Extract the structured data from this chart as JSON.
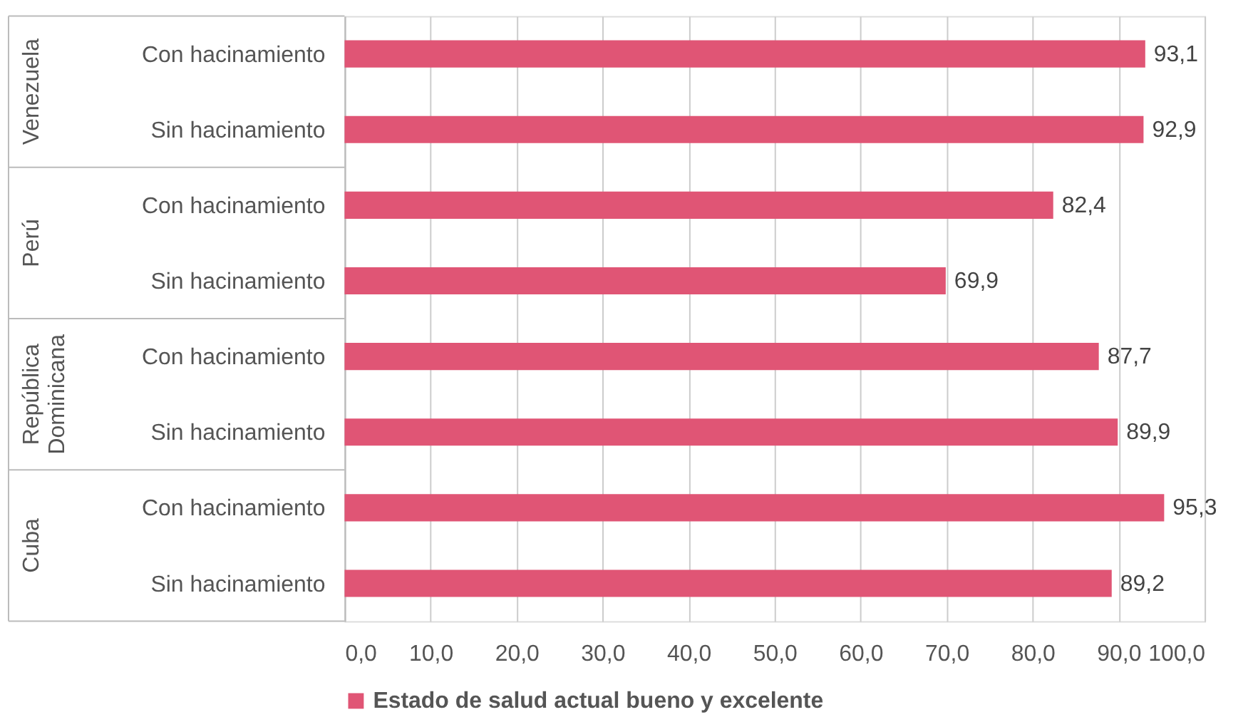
{
  "chart_data": {
    "type": "bar",
    "orientation": "horizontal",
    "categories": [
      "Con hacinamiento",
      "Sin hacinamiento",
      "Con hacinamiento",
      "Sin hacinamiento",
      "Con hacinamiento",
      "Sin hacinamiento",
      "Con hacinamiento",
      "Sin hacinamiento"
    ],
    "annotations": [
      "Venezuela",
      "Perú",
      "República Dominicana",
      "Cuba"
    ],
    "series": [
      {
        "name": "Estado de salud actual bueno y excelente",
        "color": "#e05575",
        "values": [
          93.1,
          92.9,
          82.4,
          69.9,
          87.7,
          89.9,
          95.3,
          89.2
        ],
        "value_labels": [
          "93,1",
          "92,9",
          "82,4",
          "69,9",
          "87,7",
          "89,9",
          "95,3",
          "89,2"
        ]
      }
    ],
    "xlim": [
      0,
      100
    ],
    "xticks": [
      {
        "value": 0,
        "label": "0,0"
      },
      {
        "value": 10,
        "label": "10,0"
      },
      {
        "value": 20,
        "label": "20,0"
      },
      {
        "value": 30,
        "label": "30,0"
      },
      {
        "value": 40,
        "label": "40,0"
      },
      {
        "value": 50,
        "label": "50,0"
      },
      {
        "value": 60,
        "label": "60,0"
      },
      {
        "value": 70,
        "label": "70,0"
      },
      {
        "value": 80,
        "label": "80,0"
      },
      {
        "value": 90,
        "label": "90,0"
      },
      {
        "value": 100,
        "label": "100,0"
      }
    ],
    "grid": "x",
    "legend": "bottom"
  }
}
